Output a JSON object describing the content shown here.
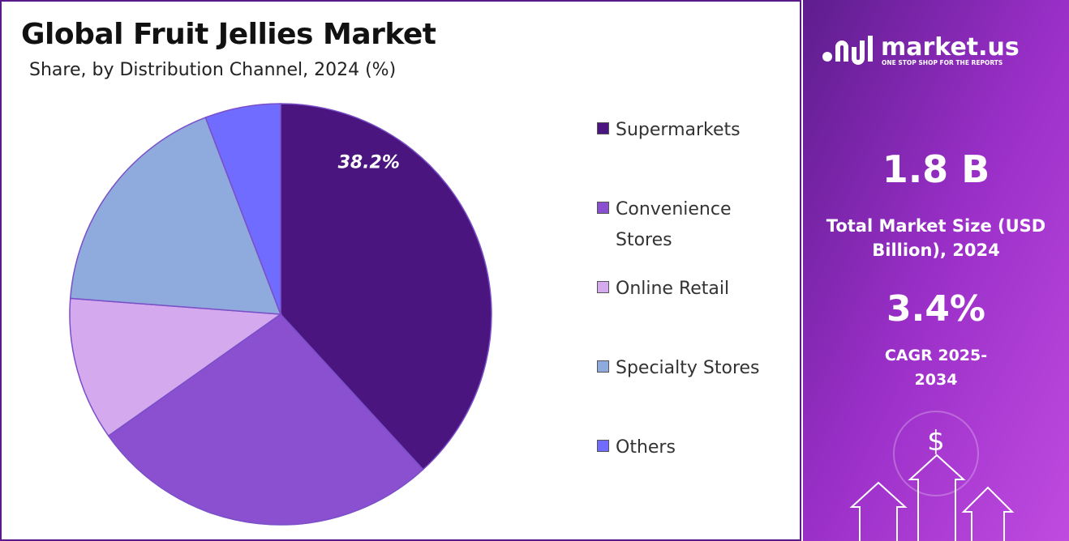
{
  "chart_data": {
    "type": "pie",
    "title": "Global Fruit Jellies Market",
    "subtitle": "Share, by Distribution Channel, 2024 (%)",
    "categories": [
      "Supermarkets",
      "Convenience Stores",
      "Online Retail",
      "Specialty Stores",
      "Others"
    ],
    "values": [
      38.2,
      27.0,
      11.0,
      18.0,
      5.8
    ],
    "value_labels": [
      "38.2%",
      null,
      null,
      null,
      null
    ],
    "colors": [
      "#4b1580",
      "#8a50d0",
      "#d4a9ee",
      "#8faadc",
      "#6f6cff"
    ]
  },
  "panel": {
    "brand": "market.us",
    "tagline": "ONE STOP SHOP FOR THE REPORTS",
    "market_size": "1.8 B",
    "market_size_label": "Total Market Size (USD Billion), 2024",
    "cagr": "3.4%",
    "cagr_label": "CAGR 2025-2034",
    "icon": "$"
  }
}
